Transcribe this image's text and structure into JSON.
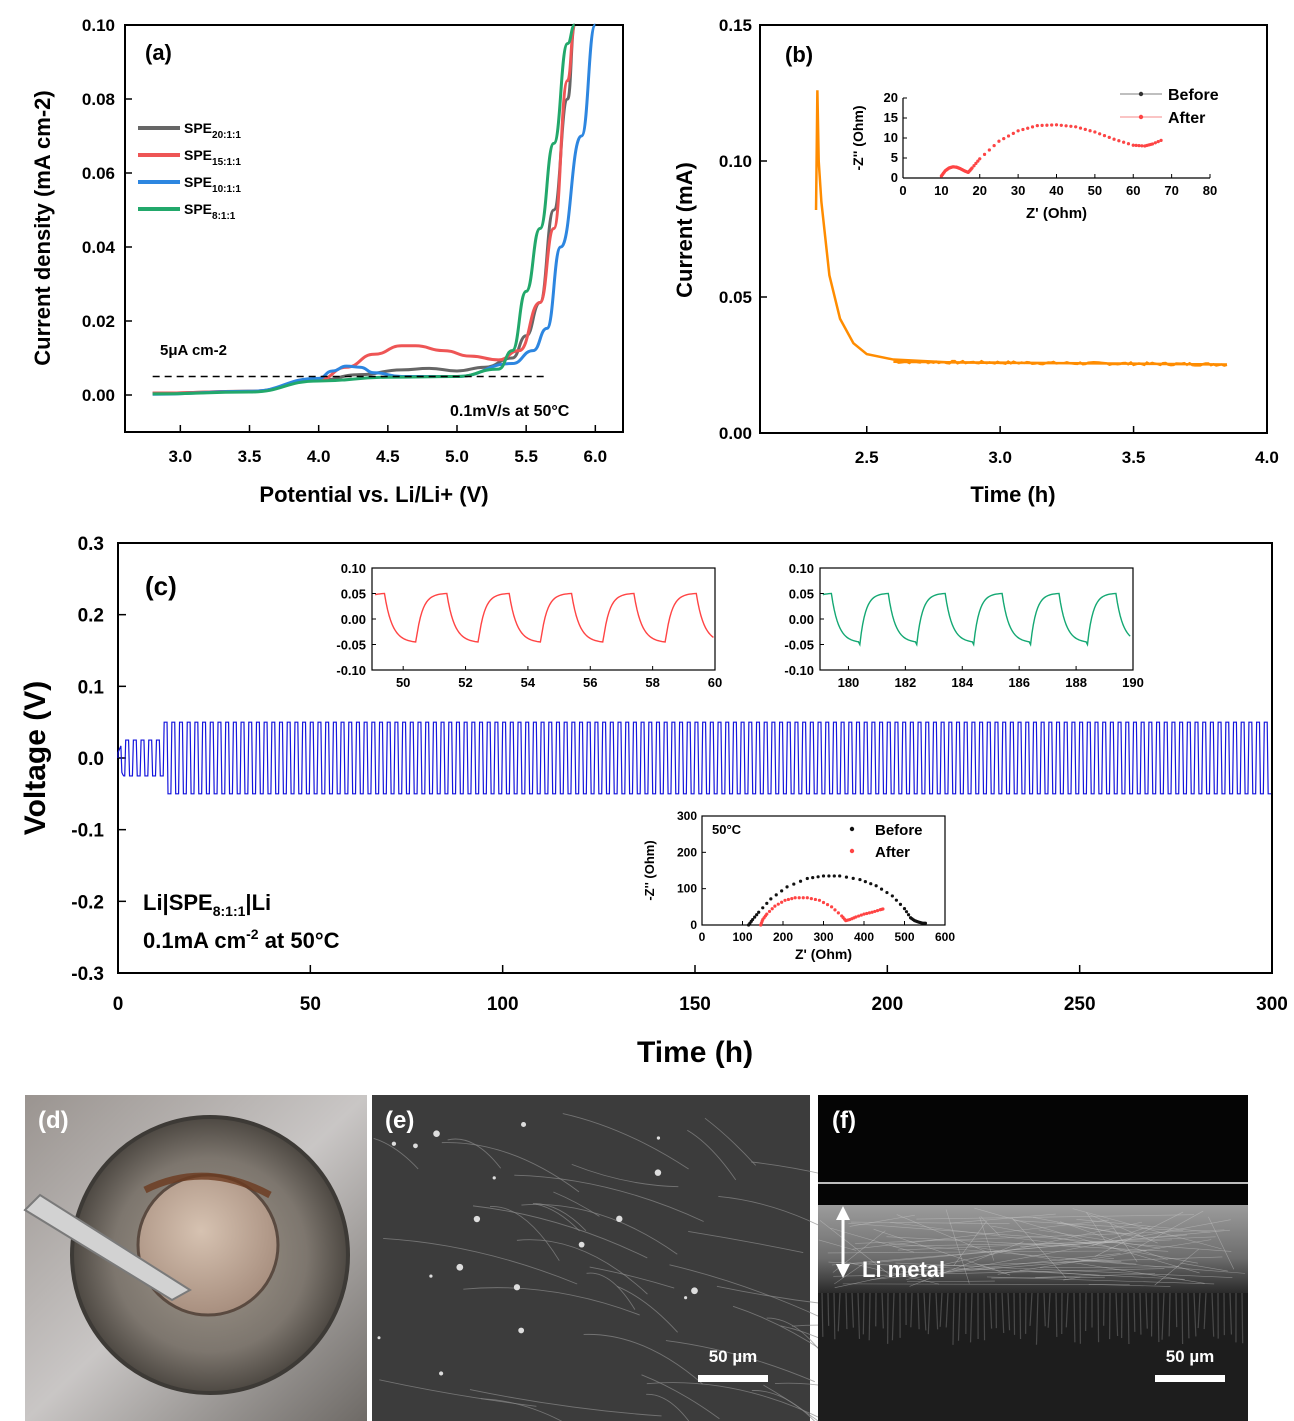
{
  "colors": {
    "SPE20": "#666666",
    "SPE15": "#ee5555",
    "SPE10": "#2d86e0",
    "SPE8": "#22a86b",
    "orange": "#ff8c00",
    "blue": "#1515dd",
    "red": "#ff4444",
    "green": "#14a873",
    "black": "#111111"
  },
  "panel_a": {
    "label": "(a)",
    "ylabel": "Current density (mA cm-2)",
    "xlabel": "Potential vs. Li/Li+ (V)",
    "ref_text": "5μA cm-2",
    "cond_text": "0.1mV/s at 50°C",
    "legend": [
      {
        "base": "SPE",
        "sub": "20:1:1"
      },
      {
        "base": "SPE",
        "sub": "15:1:1"
      },
      {
        "base": "SPE",
        "sub": "10:1:1"
      },
      {
        "base": "SPE",
        "sub": "8:1:1"
      }
    ],
    "xticks": [
      "3.0",
      "3.5",
      "4.0",
      "4.5",
      "5.0",
      "5.5",
      "6.0"
    ],
    "yticks": [
      "0.00",
      "0.02",
      "0.04",
      "0.06",
      "0.08",
      "0.10"
    ]
  },
  "panel_b": {
    "label": "(b)",
    "ylabel": "Current (mA)",
    "xlabel": "Time (h)",
    "xticks": [
      "2.5",
      "3.0",
      "3.5",
      "4.0"
    ],
    "yticks": [
      "0.00",
      "0.05",
      "0.10",
      "0.15"
    ],
    "inset": {
      "xlabel": "Z' (Ohm)",
      "ylabel": "-Z'' (Ohm)",
      "xticks": [
        "0",
        "10",
        "20",
        "30",
        "40",
        "50",
        "60",
        "70",
        "80"
      ],
      "yticks": [
        "0",
        "5",
        "10",
        "15",
        "20"
      ],
      "legend": [
        "Before",
        "After"
      ]
    }
  },
  "panel_c": {
    "label": "(c)",
    "ylabel": "Voltage (V)",
    "xlabel": "Time (h)",
    "xticks": [
      "0",
      "50",
      "100",
      "150",
      "200",
      "250",
      "300"
    ],
    "yticks": [
      "0.3",
      "0.2",
      "0.1",
      "0.0",
      "-0.1",
      "-0.2",
      "-0.3"
    ],
    "cell_text": {
      "l1a": "Li|SPE",
      "l1sub": "8:1:1",
      "l1b": "|Li",
      "l2a": "0.1mA cm",
      "l2sup": "-2",
      "l2b": " at 50°C"
    },
    "inset1": {
      "xticks": [
        "50",
        "52",
        "54",
        "56",
        "58",
        "60"
      ],
      "yticks": [
        "0.10",
        "0.05",
        "0.00",
        "-0.05",
        "-0.10"
      ]
    },
    "inset2": {
      "xticks": [
        "180",
        "182",
        "184",
        "186",
        "188",
        "190"
      ],
      "yticks": [
        "0.10",
        "0.05",
        "0.00",
        "-0.05",
        "-0.10"
      ]
    },
    "inset3": {
      "temp": "50°C",
      "legend": [
        "Before",
        "After"
      ],
      "xlabel": "Z' (Ohm)",
      "ylabel": "-Z'' (Ohm)",
      "xticks": [
        "0",
        "100",
        "200",
        "300",
        "400",
        "500",
        "600"
      ],
      "yticks": [
        "0",
        "100",
        "200",
        "300"
      ]
    }
  },
  "photos": {
    "d_label": "(d)",
    "e_label": "(e)",
    "f_label": "(f)",
    "e_scale": "50 µm",
    "f_scale": "50 µm",
    "f_annotation": "Li metal"
  },
  "chart_data": [
    {
      "type": "line",
      "panel": "a",
      "xlabel": "Potential vs. Li/Li+ (V)",
      "ylabel": "Current density (mA cm-2)",
      "xlim": [
        2.6,
        6.2
      ],
      "ylim": [
        -0.01,
        0.1
      ],
      "reference_line": {
        "y": 0.005,
        "label": "5μA cm-2",
        "style": "dashed"
      },
      "series": [
        {
          "name": "SPE20:1:1",
          "x": [
            2.8,
            3.5,
            4.0,
            4.3,
            4.6,
            4.8,
            5.0,
            5.2,
            5.4,
            5.5,
            5.6,
            5.7,
            5.8,
            5.85
          ],
          "y": [
            0.0005,
            0.001,
            0.004,
            0.0055,
            0.0068,
            0.0072,
            0.0065,
            0.0075,
            0.01,
            0.016,
            0.025,
            0.05,
            0.08,
            0.1
          ]
        },
        {
          "name": "SPE15:1:1",
          "x": [
            2.8,
            3.5,
            4.0,
            4.2,
            4.4,
            4.6,
            4.7,
            4.9,
            5.1,
            5.3,
            5.45,
            5.6,
            5.7,
            5.8,
            5.85
          ],
          "y": [
            0.0005,
            0.001,
            0.004,
            0.0075,
            0.011,
            0.0133,
            0.0133,
            0.012,
            0.0105,
            0.0095,
            0.012,
            0.025,
            0.045,
            0.085,
            0.1
          ]
        },
        {
          "name": "SPE10:1:1",
          "x": [
            2.8,
            3.5,
            4.0,
            4.1,
            4.2,
            4.3,
            4.4,
            4.6,
            5.0,
            5.4,
            5.55,
            5.65,
            5.75,
            5.9,
            6.0
          ],
          "y": [
            0.0002,
            0.001,
            0.0045,
            0.0065,
            0.0078,
            0.0075,
            0.006,
            0.005,
            0.005,
            0.0085,
            0.012,
            0.018,
            0.04,
            0.07,
            0.1
          ]
        },
        {
          "name": "SPE8:1:1",
          "x": [
            2.8,
            3.5,
            4.0,
            4.5,
            5.0,
            5.3,
            5.4,
            5.5,
            5.6,
            5.7,
            5.8,
            5.85
          ],
          "y": [
            0.0003,
            0.0008,
            0.0038,
            0.0048,
            0.005,
            0.007,
            0.012,
            0.028,
            0.045,
            0.068,
            0.095,
            0.1
          ]
        }
      ],
      "annotations": [
        "5μA cm-2",
        "0.1mV/s at 50°C"
      ]
    },
    {
      "type": "line",
      "panel": "b",
      "xlabel": "Time (h)",
      "ylabel": "Current (mA)",
      "xlim": [
        2.1,
        4.0
      ],
      "ylim": [
        0.0,
        0.15
      ],
      "series": [
        {
          "name": "",
          "x": [
            2.31,
            2.315,
            2.32,
            2.33,
            2.36,
            2.4,
            2.45,
            2.5,
            2.6,
            2.8,
            3.0,
            3.5,
            3.85
          ],
          "y": [
            0.082,
            0.126,
            0.1,
            0.085,
            0.058,
            0.042,
            0.033,
            0.029,
            0.027,
            0.026,
            0.0258,
            0.0255,
            0.0252
          ]
        }
      ]
    },
    {
      "type": "scatter",
      "panel": "b-inset",
      "xlabel": "Z' (Ohm)",
      "ylabel": "-Z'' (Ohm)",
      "xlim": [
        0,
        80
      ],
      "ylim": [
        0,
        20
      ],
      "series": [
        {
          "name": "Before",
          "x": [
            10,
            11,
            12,
            13,
            14,
            15,
            16,
            17,
            18,
            20,
            25,
            30,
            35,
            40,
            45,
            50,
            55,
            60,
            63,
            65,
            68
          ],
          "y": [
            0.5,
            1.8,
            2.5,
            2.8,
            2.7,
            2.3,
            1.8,
            1.4,
            2.5,
            4.8,
            9.2,
            11.8,
            13.1,
            13.3,
            12.8,
            11.5,
            9.7,
            8.2,
            8.0,
            8.5,
            9.7
          ]
        },
        {
          "name": "After",
          "x": [
            10,
            11,
            12,
            13,
            14,
            15,
            16,
            17,
            18,
            20,
            25,
            30,
            35,
            40,
            45,
            50,
            55,
            60,
            63,
            65,
            68
          ],
          "y": [
            0.5,
            1.8,
            2.5,
            2.8,
            2.7,
            2.3,
            1.8,
            1.4,
            2.5,
            4.8,
            9.2,
            11.8,
            13.1,
            13.3,
            12.8,
            11.5,
            9.7,
            8.2,
            8.0,
            8.5,
            9.7
          ]
        }
      ]
    },
    {
      "type": "line",
      "panel": "c",
      "xlabel": "Time (h)",
      "ylabel": "Voltage (V)",
      "xlim": [
        0,
        300
      ],
      "ylim": [
        -0.3,
        0.3
      ],
      "series": [
        {
          "name": "",
          "cycles": {
            "period_h": 2.0,
            "t_start": 0,
            "t_end": 300,
            "amplitude_first_12h": 0.025,
            "amplitude": 0.05
          }
        }
      ]
    },
    {
      "type": "line",
      "panel": "c-inset1",
      "xlim": [
        49,
        60
      ],
      "ylim": [
        -0.1,
        0.1
      ],
      "series": [
        {
          "name": "",
          "period_h": 2.0,
          "max": 0.05,
          "min": -0.05
        }
      ]
    },
    {
      "type": "line",
      "panel": "c-inset2",
      "xlim": [
        179,
        190
      ],
      "ylim": [
        -0.1,
        0.1
      ],
      "series": [
        {
          "name": "",
          "period_h": 2.0,
          "max": 0.05,
          "min": -0.05
        }
      ]
    },
    {
      "type": "scatter",
      "panel": "c-inset3",
      "xlabel": "Z' (Ohm)",
      "ylabel": "-Z'' (Ohm)",
      "xlim": [
        0,
        600
      ],
      "ylim": [
        0,
        300
      ],
      "series": [
        {
          "name": "Before",
          "x": [
            115,
            125,
            140,
            170,
            210,
            260,
            300,
            340,
            390,
            430,
            470,
            500,
            515,
            525,
            535,
            545,
            555
          ],
          "y": [
            0,
            15,
            35,
            72,
            105,
            128,
            135,
            135,
            125,
            108,
            80,
            45,
            20,
            12,
            8,
            5,
            5
          ]
        },
        {
          "name": "After",
          "x": [
            145,
            150,
            160,
            180,
            205,
            230,
            260,
            290,
            320,
            345,
            355,
            365,
            380,
            400,
            420,
            440,
            450
          ],
          "y": [
            0,
            15,
            30,
            52,
            68,
            75,
            75,
            68,
            50,
            25,
            12,
            15,
            22,
            30,
            35,
            42,
            45
          ]
        }
      ]
    }
  ]
}
